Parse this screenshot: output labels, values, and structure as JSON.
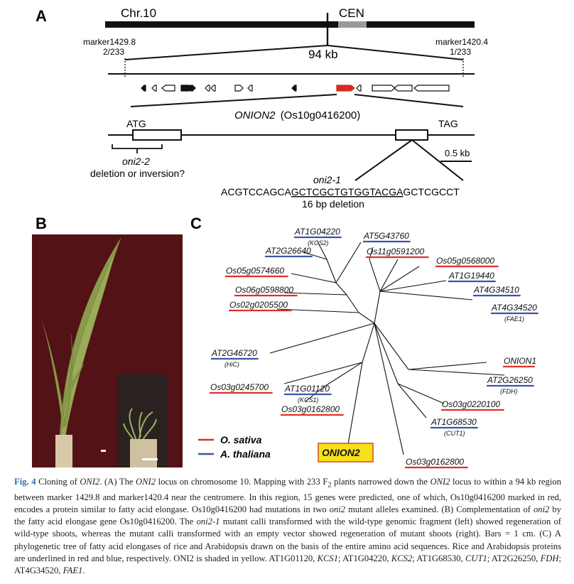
{
  "panel_a": {
    "label": "A",
    "chromosome": "Chr.10",
    "centromere": "CEN",
    "marker_left": "marker1429.8",
    "marker_left_count": "2/233",
    "marker_right": "marker1420.4",
    "marker_right_count": "1/233",
    "region_size": "94 kb",
    "gene_name": "ONION2",
    "gene_id": "(Os10g0416200)",
    "start_codon": "ATG",
    "stop_codon": "TAG",
    "scale": "0.5 kb",
    "allele_2_name": "oni2-2",
    "allele_2_desc": "deletion or inversion?",
    "allele_1_name": "oni2-1",
    "seq_pre": "ACGTCCAGCA",
    "seq_del": "GCTCGCTGTGGTACGA",
    "seq_post": "GCTCGCCT",
    "deletion_label": "16 bp deletion",
    "colors": {
      "target_gene": "#d42a25",
      "centromere": "#9a9a9a"
    }
  },
  "panel_b": {
    "label": "B",
    "bar_left": "-",
    "bar_right": "-"
  },
  "panel_c": {
    "label": "C",
    "legend": [
      {
        "name": "O. sativa",
        "color": "#e0302a"
      },
      {
        "name": "A. thaliana",
        "color": "#3a55a8"
      }
    ],
    "leaves": [
      {
        "label": "AT1G04220",
        "sub": "(KCS2)",
        "species": "at"
      },
      {
        "label": "AT5G43760",
        "sub": "",
        "species": "at"
      },
      {
        "label": "AT2G26640",
        "sub": "",
        "species": "at"
      },
      {
        "label": "Os11g0591200",
        "sub": "",
        "species": "os"
      },
      {
        "label": "Os05g0568000",
        "sub": "",
        "species": "os"
      },
      {
        "label": "Os05g0574660",
        "sub": "",
        "species": "os"
      },
      {
        "label": "AT1G19440",
        "sub": "",
        "species": "at"
      },
      {
        "label": "AT4G34510",
        "sub": "",
        "species": "at"
      },
      {
        "label": "Os06g0598800",
        "sub": "",
        "species": "os"
      },
      {
        "label": "Os02g0205500",
        "sub": "",
        "species": "os"
      },
      {
        "label": "AT4G34520",
        "sub": "(FAE1)",
        "species": "at"
      },
      {
        "label": "AT2G46720",
        "sub": "(HiC)",
        "species": "at"
      },
      {
        "label": "ONION1",
        "sub": "",
        "species": "os"
      },
      {
        "label": "AT2G26250",
        "sub": "(FDH)",
        "species": "at"
      },
      {
        "label": "Os03g0245700",
        "sub": "",
        "species": "os"
      },
      {
        "label": "AT1G01120",
        "sub": "(KCS1)",
        "species": "at"
      },
      {
        "label": "Os03g0162800",
        "sub": "",
        "species": "os"
      },
      {
        "label": "Os03g0220100",
        "sub": "",
        "species": "os"
      },
      {
        "label": "AT1G68530",
        "sub": "(CUT1)",
        "species": "at"
      },
      {
        "label": "ONION2",
        "sub": "",
        "species": "os"
      },
      {
        "label": "Os03g0162800",
        "sub": "",
        "species": "os"
      }
    ],
    "highlight_color": "#f7e21a"
  },
  "caption": {
    "fig_label": "Fig. 4",
    "title": "Cloning of",
    "title_gene": "ONI2",
    "parts": [
      ". (A) The ",
      "ONI2",
      " locus on chromosome 10. Mapping with 233 F",
      "2",
      " plants narrowed down the ",
      "ONI2",
      " locus to within a 94 kb region between marker 1429.8 and marker1420.4 near the centromere. In this region, 15 genes were predicted, one of which, Os10g0416200 marked in red, encodes a protein similar to fatty acid elongase. Os10g0416200 had mutations in two ",
      "oni2",
      " mutant alleles examined. (B) Complementation of ",
      "oni2",
      " by the fatty acid elongase gene Os10g0416200. The ",
      "oni2-1",
      " mutant calli transformed with the wild-type genomic fragment (left) showed regeneration of wild-type shoots, whereas the mutant calli transformed with an empty vector showed regeneration of mutant shoots (right). Bars = 1 cm. (C) A phylogenetic tree of fatty acid elongases of rice and Arabidopsis drawn on the basis of the entire amino acid sequences. Rice and Arabidopsis proteins are underlined in red and blue, respectively. ONI2 is shaded in yellow. AT1G01120, ",
      "KCS1",
      "; AT1G04220, ",
      "KCS2",
      "; AT1G68530, ",
      "CUT1",
      "; AT2G26250, ",
      "FDH",
      "; AT4G34520, ",
      "FAE1",
      "."
    ]
  }
}
